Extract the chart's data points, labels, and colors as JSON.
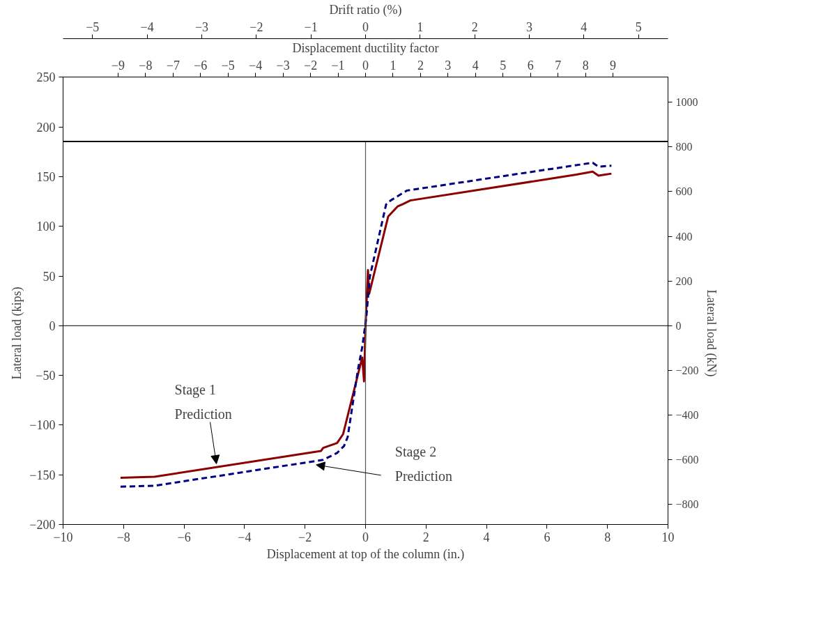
{
  "chart_data": [
    {
      "type": "line",
      "xlabel": "Displacement ductility factor",
      "x2label": "Drift ratio (%)",
      "xlim": [
        -11,
        11
      ],
      "xticks": [
        -9,
        -8,
        -7,
        -6,
        -5,
        -4,
        -3,
        -2,
        -1,
        0,
        1,
        2,
        3,
        4,
        5,
        6,
        7,
        8,
        9
      ],
      "x2lim": [
        -5.54,
        5.54
      ],
      "x2ticks": [
        -5,
        -4,
        -3,
        -2,
        -1,
        0,
        1,
        2,
        3,
        4,
        5
      ],
      "ylim": [
        185,
        250
      ],
      "yticks": [
        200,
        250
      ],
      "grid": false,
      "annotations": [
        "1000"
      ]
    },
    {
      "type": "line",
      "xlabel": "Displacement at top of the column (in.)",
      "ylabel": "Lateral load (kips)",
      "y2label": "Lateral load (kN)",
      "xlim": [
        -10,
        10
      ],
      "xticks": [
        -10,
        -8,
        -6,
        -4,
        -2,
        0,
        2,
        4,
        6,
        8,
        10
      ],
      "ylim": [
        -200,
        185
      ],
      "yticks": [
        -200,
        -150,
        -100,
        -50,
        0,
        50,
        100,
        150
      ],
      "y2lim": [
        -890,
        823
      ],
      "y2ticks": [
        -800,
        -600,
        -400,
        -200,
        0,
        200,
        400,
        600,
        800
      ],
      "grid": false,
      "series": [
        {
          "color": "#8b0000",
          "line_style": "solid",
          "x": [
            -8.1,
            -6.97,
            -1.47,
            -1.4,
            -0.94,
            -0.74,
            -0.11,
            -0.05,
            0,
            0.08,
            0.12,
            0.75,
            1.06,
            1.21,
            1.48,
            6.97,
            7.51,
            7.7,
            8.13
          ],
          "values": [
            -153,
            -152,
            -126,
            -123,
            -118,
            -109,
            -32,
            -56,
            0,
            56,
            32,
            110,
            120,
            122,
            126,
            152,
            155,
            151,
            153
          ]
        },
        {
          "color": "#000080",
          "line_style": "dashed",
          "x": [
            -8.1,
            -6.97,
            -1.4,
            -0.94,
            -0.71,
            -0.59,
            -0.25,
            -0.1,
            0.03,
            0.14,
            0.68,
            0.83,
            1.37,
            7.51,
            7.7,
            8.13
          ],
          "values": [
            -162,
            -161,
            -135,
            -128,
            -121,
            -112,
            -44,
            -20,
            10,
            49,
            122,
            126,
            136,
            164,
            160,
            161
          ]
        }
      ],
      "ref_lines": [
        {
          "axis": "x",
          "value": 0
        },
        {
          "axis": "y",
          "value": 0
        }
      ],
      "annotations": [
        {
          "text": "Stage 1\nPrediction",
          "x": -4.93,
          "y": -139
        },
        {
          "text": "Stage 2\nPrediction",
          "x": -1.63,
          "y": -140
        }
      ]
    }
  ]
}
